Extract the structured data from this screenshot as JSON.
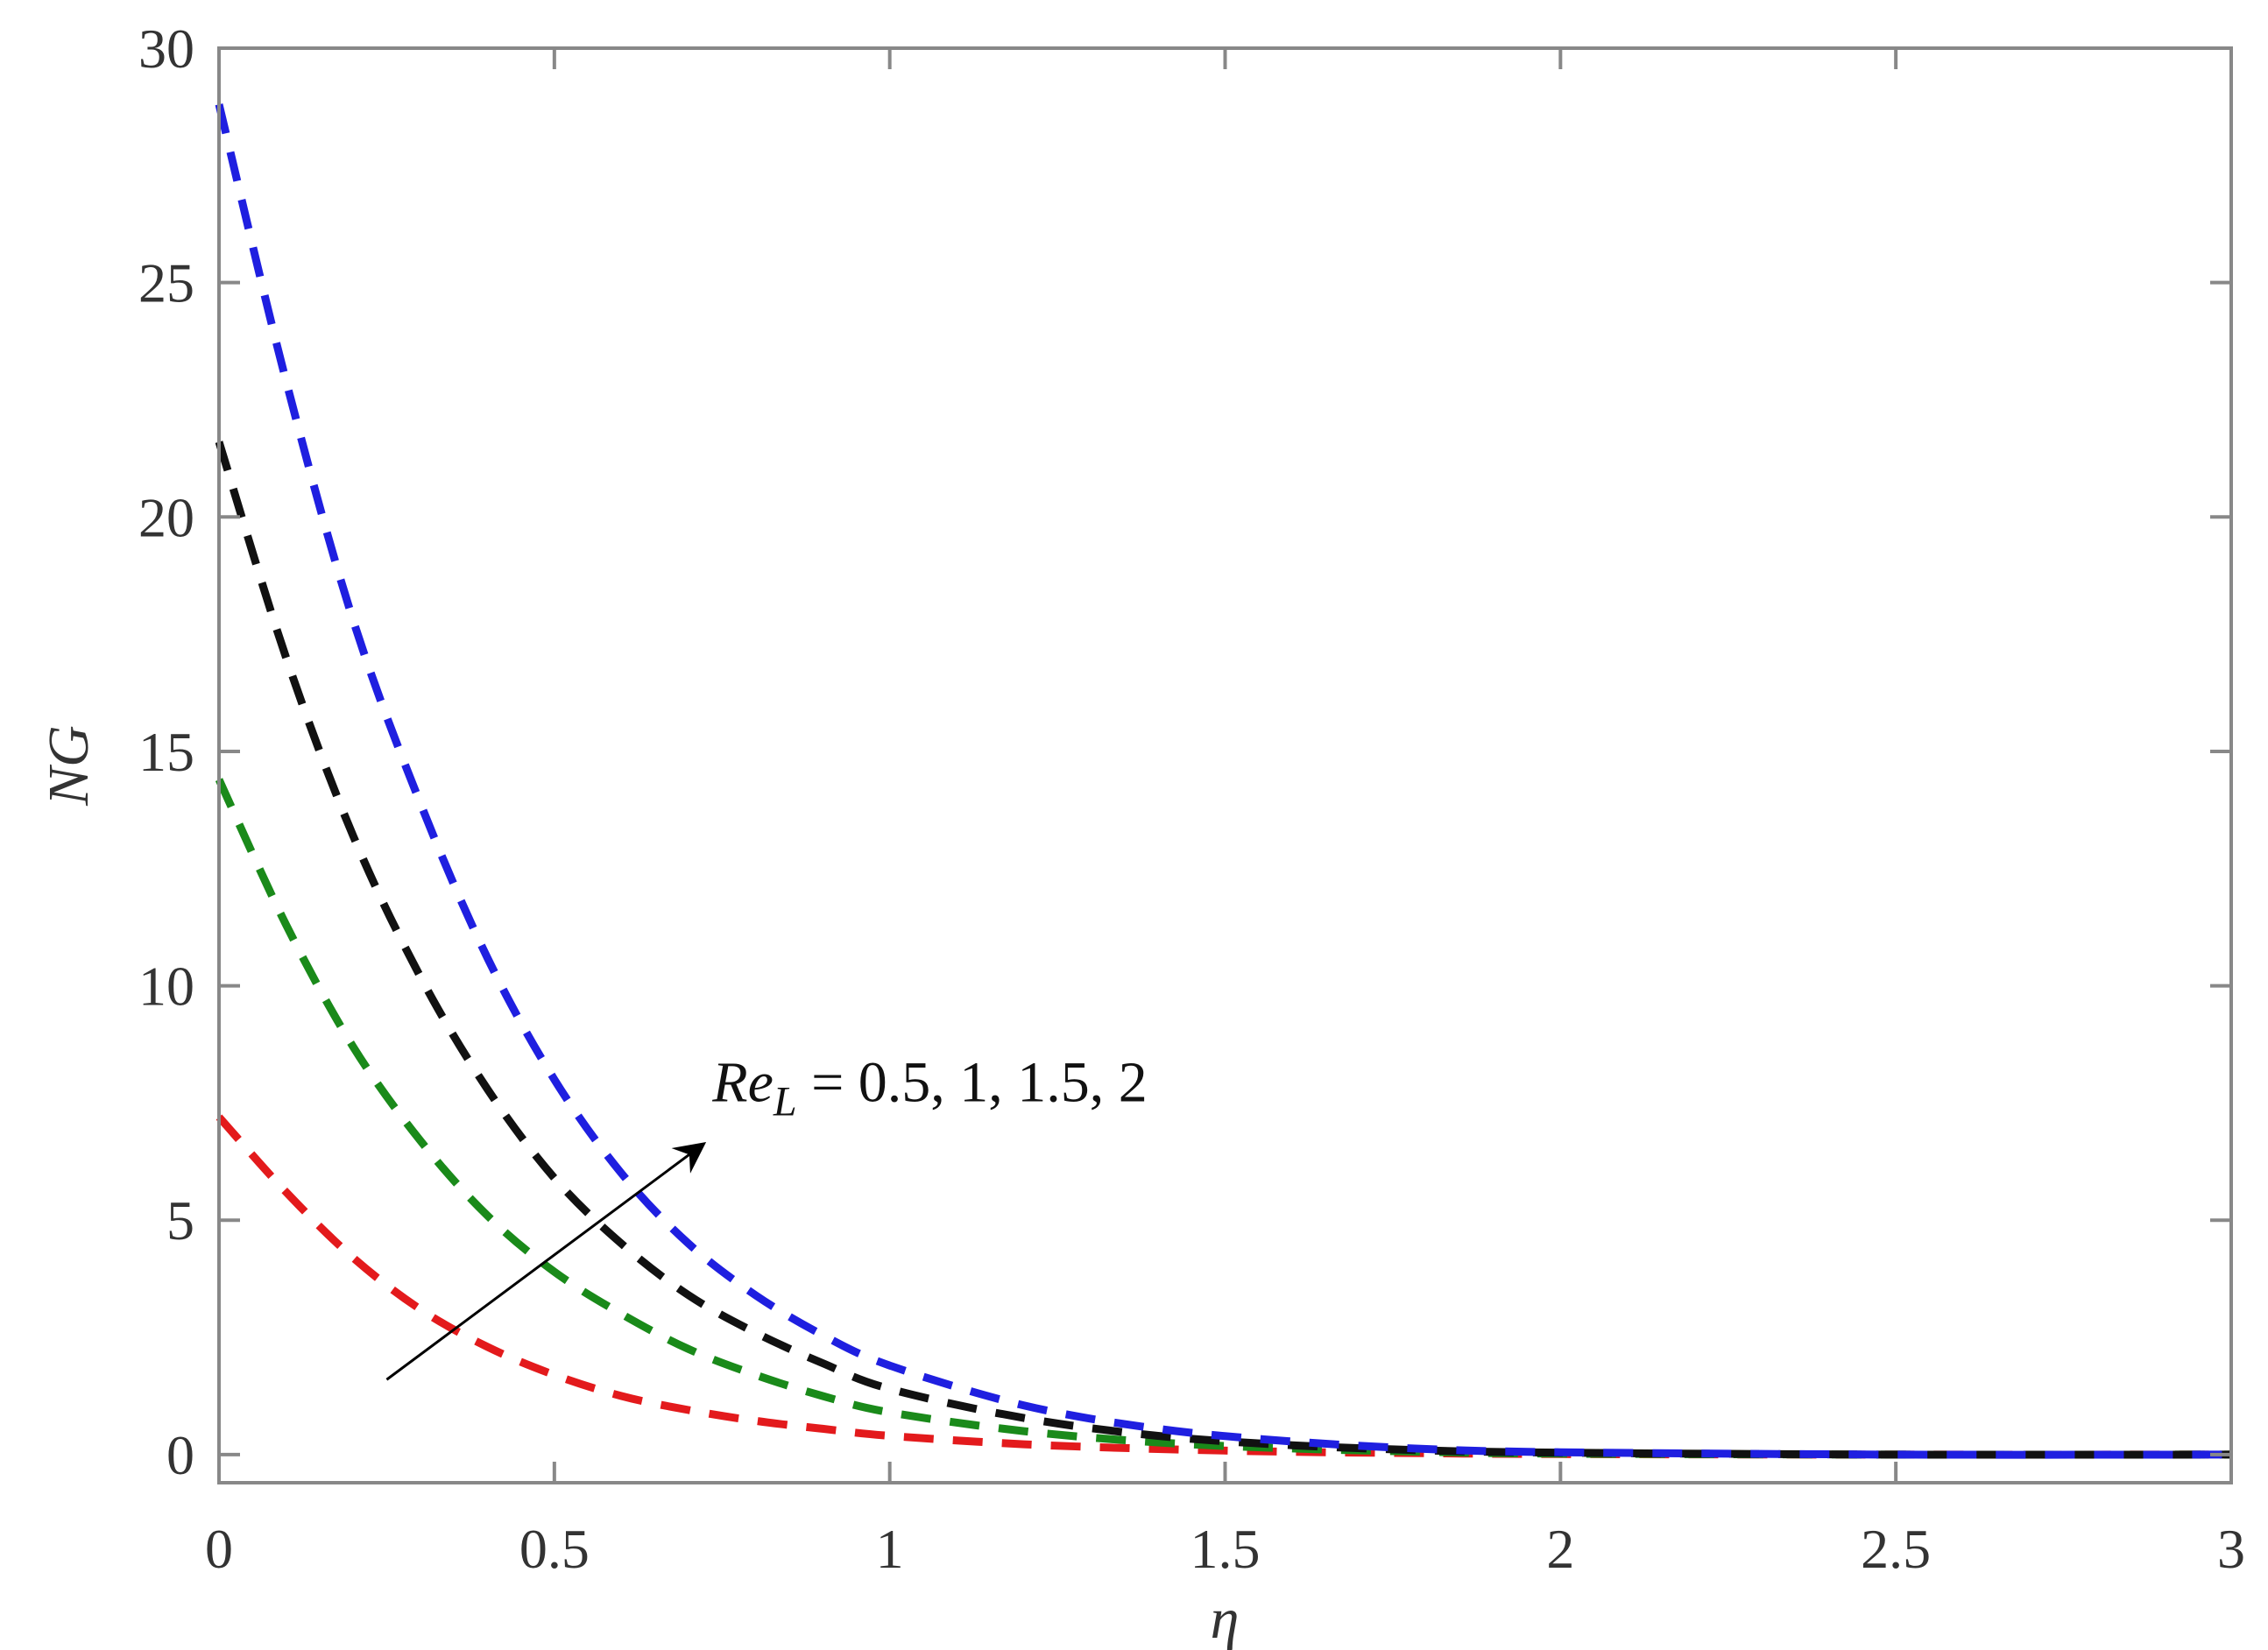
{
  "chart_data": {
    "type": "line",
    "xlabel": "η",
    "ylabel": "NG",
    "xlim": [
      0,
      3
    ],
    "ylim": [
      -0.6,
      30
    ],
    "xticks": [
      0,
      0.5,
      1,
      1.5,
      2,
      2.5,
      3
    ],
    "xtick_labels": [
      "0",
      "0.5",
      "1",
      "1.5",
      "2",
      "2.5",
      "3"
    ],
    "yticks": [
      0,
      5,
      10,
      15,
      20,
      25,
      30
    ],
    "ytick_labels": [
      "0",
      "5",
      "10",
      "15",
      "20",
      "25",
      "30"
    ],
    "grid": false,
    "line_style": "dashed",
    "x": [
      0,
      0.1,
      0.2,
      0.3,
      0.4,
      0.5,
      0.6,
      0.7,
      0.8,
      0.9,
      1.0,
      1.2,
      1.4,
      1.6,
      1.8,
      2.0,
      2.5,
      3.0
    ],
    "series": [
      {
        "color": "#e31a1c",
        "values": [
          7.2,
          5.6,
          4.2,
          3.1,
          2.3,
          1.7,
          1.25,
          0.95,
          0.72,
          0.55,
          0.4,
          0.22,
          0.12,
          0.06,
          0.03,
          0.01,
          0.0,
          0.0
        ]
      },
      {
        "color": "#1a8a1a",
        "values": [
          14.4,
          11.3,
          8.7,
          6.7,
          5.1,
          3.9,
          3.0,
          2.25,
          1.7,
          1.25,
          0.9,
          0.5,
          0.26,
          0.13,
          0.06,
          0.02,
          0.0,
          0.0
        ]
      },
      {
        "color": "#111111",
        "values": [
          21.6,
          17.0,
          13.2,
          10.2,
          7.8,
          5.9,
          4.5,
          3.4,
          2.6,
          1.95,
          1.4,
          0.78,
          0.4,
          0.2,
          0.09,
          0.04,
          0.0,
          0.0
        ]
      },
      {
        "color": "#1f1fe0",
        "values": [
          28.8,
          22.9,
          17.8,
          13.9,
          10.6,
          8.0,
          6.0,
          4.5,
          3.4,
          2.55,
          1.9,
          1.05,
          0.55,
          0.28,
          0.12,
          0.05,
          0.0,
          0.0
        ]
      }
    ],
    "annotation": {
      "re": "Re",
      "sub": "L",
      "values": " = 0.5, 1, 1.5, 2",
      "arrow_from": [
        0.25,
        1.6
      ],
      "arrow_to": [
        0.72,
        6.6
      ]
    }
  }
}
